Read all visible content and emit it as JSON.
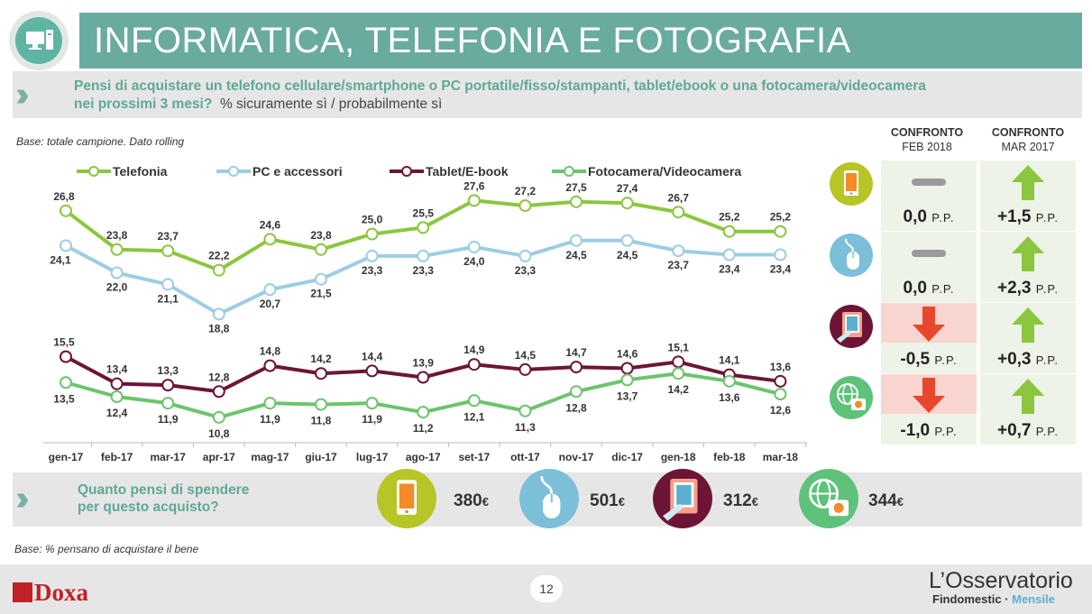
{
  "header": {
    "title": "INFORMATICA, TELEFONIA E FOTOGRAFIA",
    "question_bold_1": "Pensi di acquistare un telefono cellulare/smartphone o PC portatile/fisso/stampanti, tablet/ebook o una fotocamera/videocamera",
    "question_bold_2": "nei prossimi 3 mesi?",
    "question_unit": "% sicuramente sì / probabilmente sì"
  },
  "base_top": "Base: totale campione. Dato rolling",
  "base_bottom": "Base: % pensano di acquistare il bene",
  "chart_data": {
    "type": "line",
    "categories": [
      "gen-17",
      "feb-17",
      "mar-17",
      "apr-17",
      "mag-17",
      "giu-17",
      "lug-17",
      "ago-17",
      "set-17",
      "ott-17",
      "nov-17",
      "dic-17",
      "gen-18",
      "feb-18",
      "mar-18"
    ],
    "ylim": [
      8,
      30
    ],
    "grid": false,
    "legend": "top",
    "series": [
      {
        "name": "Telefonia",
        "color": "#8cc63f",
        "marker": "#8cc63f",
        "values": [
          26.8,
          23.8,
          23.7,
          22.2,
          24.6,
          23.8,
          25.0,
          25.5,
          27.6,
          27.2,
          27.5,
          27.4,
          26.7,
          25.2,
          25.2
        ]
      },
      {
        "name": "PC e accessori",
        "color": "#9dcde3",
        "marker": "#9dcde3",
        "values": [
          24.1,
          22.0,
          21.1,
          18.8,
          20.7,
          21.5,
          23.3,
          23.3,
          24.0,
          23.3,
          24.5,
          24.5,
          23.7,
          23.4,
          23.4
        ]
      },
      {
        "name": "Tablet/E-book",
        "color": "#6d1537",
        "marker": "#6d1537",
        "values": [
          15.5,
          13.4,
          13.3,
          12.8,
          14.8,
          14.2,
          14.4,
          13.9,
          14.9,
          14.5,
          14.7,
          14.6,
          15.1,
          14.1,
          13.6
        ]
      },
      {
        "name": "Fotocamera/Videocamera",
        "color": "#6cc46c",
        "marker": "#6cc46c",
        "values": [
          13.5,
          12.4,
          11.9,
          10.8,
          11.9,
          11.8,
          11.9,
          11.2,
          12.1,
          11.3,
          12.8,
          13.7,
          14.2,
          13.6,
          12.6
        ]
      }
    ]
  },
  "comparison": {
    "headers": [
      {
        "bold": "CONFRONTO",
        "sub": "FEB 2018"
      },
      {
        "bold": "CONFRONTO",
        "sub": "MAR 2017"
      }
    ],
    "unit": "P.P.",
    "rows": [
      {
        "icon": "smartphone-icon",
        "icon_color": "#b8c526",
        "feb": {
          "value": "0,0",
          "trend": "flat"
        },
        "mar": {
          "value": "+1,5",
          "trend": "up"
        }
      },
      {
        "icon": "mouse-icon",
        "icon_color": "#7bbfd9",
        "feb": {
          "value": "0,0",
          "trend": "flat"
        },
        "mar": {
          "value": "+2,3",
          "trend": "up"
        }
      },
      {
        "icon": "tablet-icon",
        "icon_color": "#6d1537",
        "feb": {
          "value": "-0,5",
          "trend": "down"
        },
        "mar": {
          "value": "+0,3",
          "trend": "up"
        }
      },
      {
        "icon": "camera-globe-icon",
        "icon_color": "#5ec27a",
        "feb": {
          "value": "-1,0",
          "trend": "down"
        },
        "mar": {
          "value": "+0,7",
          "trend": "up"
        }
      }
    ]
  },
  "spend": {
    "question_1": "Quanto pensi di spendere",
    "question_2": "per questo acquisto?",
    "items": [
      {
        "icon": "smartphone-icon",
        "color": "#b8c526",
        "value": "380",
        "currency": "€"
      },
      {
        "icon": "mouse-icon",
        "color": "#7bbfd9",
        "value": "501",
        "currency": "€"
      },
      {
        "icon": "tablet-icon",
        "color": "#6d1537",
        "value": "312",
        "currency": "€"
      },
      {
        "icon": "camera-globe-icon",
        "color": "#5ec27a",
        "value": "344",
        "currency": "€"
      }
    ]
  },
  "footer": {
    "page": "12",
    "brand_left": "Doxa",
    "brand_right_1": "L’Osservatorio",
    "brand_right_2a": "Findomestic · ",
    "brand_right_2b": "Mensile"
  },
  "colors": {
    "accent": "#6aaba0",
    "up_arrow": "#8cc63f",
    "down_arrow": "#e8472d",
    "flat": "#9a9a9a"
  }
}
